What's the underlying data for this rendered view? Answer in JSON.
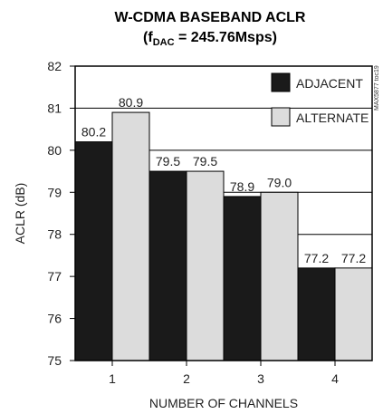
{
  "chart_data": {
    "type": "bar",
    "title_line1": "W-CDMA BASEBAND ACLR",
    "title_line2_prefix": "(f",
    "title_line2_sub": "DAC",
    "title_line2_suffix": " = 245.76Msps)",
    "xlabel": "NUMBER OF CHANNELS",
    "ylabel": "ACLR (dB)",
    "ylim": [
      75,
      82
    ],
    "yticks": [
      75,
      76,
      77,
      78,
      79,
      80,
      81,
      82
    ],
    "grid": true,
    "legend_position": "top-right",
    "categories": [
      "1",
      "2",
      "3",
      "4"
    ],
    "series": [
      {
        "name": "ADJACENT",
        "color": "#1a1a1a",
        "values": [
          80.2,
          79.5,
          78.9,
          77.2
        ],
        "labels": [
          "80.2",
          "79.5",
          "78.9",
          "77.2"
        ]
      },
      {
        "name": "ALTERNATE",
        "color": "#dcdcdc",
        "values": [
          80.9,
          79.5,
          79.0,
          77.2
        ],
        "labels": [
          "80.9",
          "79.5",
          "79.0",
          "77.2"
        ]
      }
    ]
  },
  "watermark": "MAX5877 toc19"
}
